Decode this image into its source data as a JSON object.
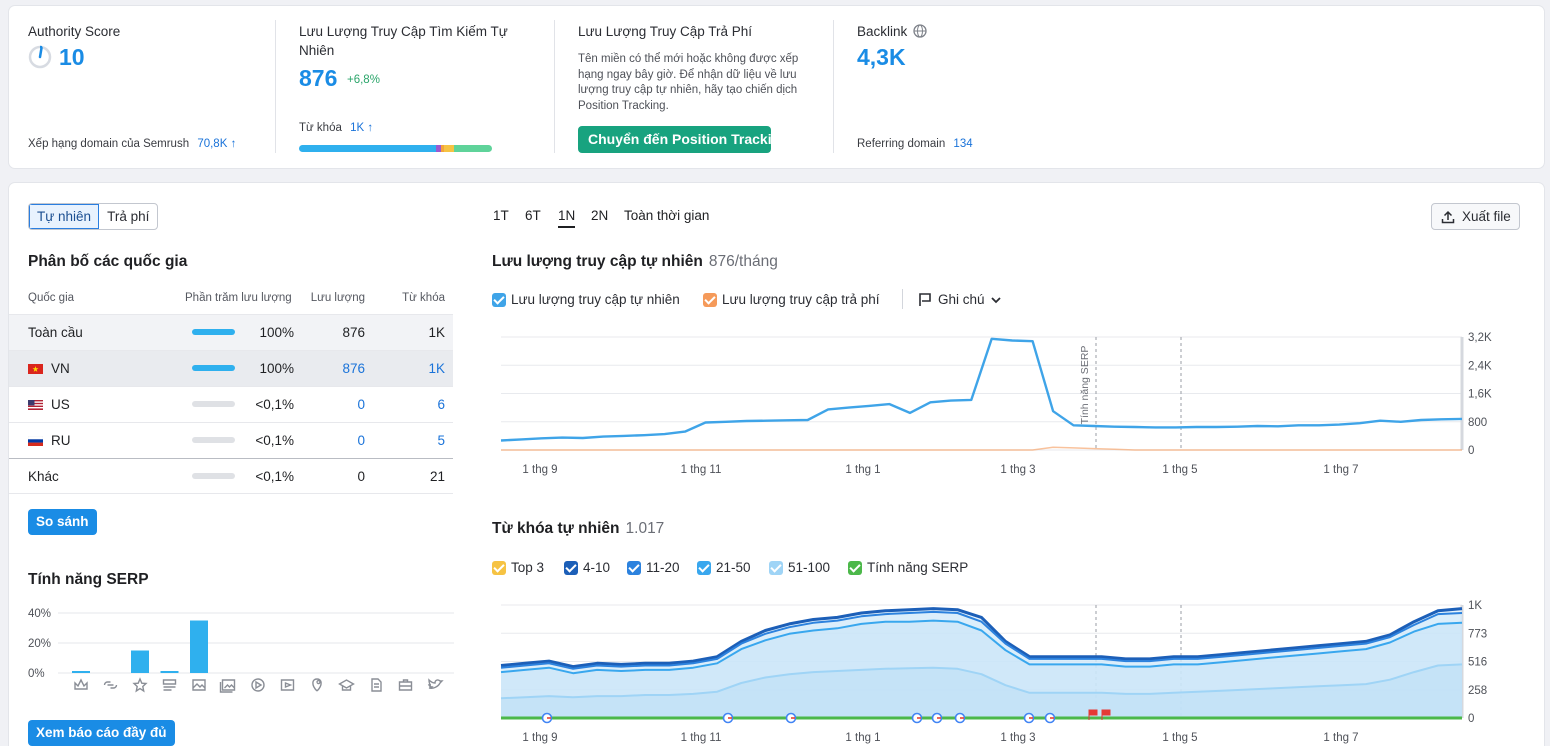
{
  "summary": {
    "authority": {
      "label": "Authority Score",
      "value": "10",
      "sub_label": "Xếp hạng domain của Semrush",
      "sub_value": "70,8K",
      "sub_arrow": "↑"
    },
    "organic": {
      "label": "Lưu Lượng Truy Cập Tìm Kiếm Tự Nhiên",
      "value": "876",
      "delta": "+6,8%",
      "kw_label": "Từ khóa",
      "kw_value": "1K",
      "kw_arrow": "↑"
    },
    "paid": {
      "label": "Lưu Lượng Truy Cập Trả Phí",
      "note": "Tên miền có thể mới hoặc không được xếp hạng ngay bây giờ. Để nhận dữ liệu về lưu lượng truy cập tự nhiên, hãy tạo chiến dịch Position Tracking.",
      "button": "Chuyển đến Position Tracking"
    },
    "backlink": {
      "label": "Backlink",
      "value": "4,3K",
      "sub_label": "Referring domain",
      "sub_value": "134"
    }
  },
  "tabs": {
    "organic": "Tự nhiên",
    "paid": "Trả phí"
  },
  "countries": {
    "title": "Phân bố các quốc gia",
    "headers": {
      "country": "Quốc gia",
      "share": "Phần trăm lưu lượng",
      "traffic": "Lưu lượng",
      "keywords": "Từ khóa"
    },
    "rows": [
      {
        "name": "Toàn cầu",
        "share": "100%",
        "traffic": "876",
        "keywords": "1K"
      },
      {
        "name": "VN",
        "share": "100%",
        "traffic": "876",
        "keywords": "1K"
      },
      {
        "name": "US",
        "share": "<0,1%",
        "traffic": "0",
        "keywords": "6"
      },
      {
        "name": "RU",
        "share": "<0,1%",
        "traffic": "0",
        "keywords": "5"
      },
      {
        "name": "Khác",
        "share": "<0,1%",
        "traffic": "0",
        "keywords": "21"
      }
    ],
    "compare_button": "So sánh"
  },
  "serp": {
    "title": "Tính năng SERP",
    "full_report_button": "Xem báo cáo đầy đủ",
    "icons": [
      "crown-icon",
      "link-icon",
      "star-icon",
      "list-icon",
      "image-icon",
      "image-gallery-icon",
      "video-icon",
      "play-icon",
      "location-pin-icon",
      "graduation-cap-icon",
      "document-icon",
      "briefcase-icon",
      "twitter-icon"
    ]
  },
  "periods": [
    "1T",
    "6T",
    "1N",
    "2N",
    "Toàn thời gian"
  ],
  "active_period": "1N",
  "export_button": "Xuất file",
  "traffic_section": {
    "title": "Lưu lượng truy cập tự nhiên",
    "value": "876/tháng",
    "legend_organic": "Lưu lượng truy cập tự nhiên",
    "legend_paid": "Lưu lượng truy cập trả phí",
    "notes": "Ghi chú"
  },
  "keywords_section": {
    "title": "Từ khóa tự nhiên",
    "value": "1.017",
    "legend": [
      "Top 3",
      "4-10",
      "11-20",
      "21-50",
      "51-100",
      "Tính năng SERP"
    ]
  },
  "colors": {
    "organic": "#3fa4e8",
    "paid": "#f59a5a",
    "top3": "#f6c343",
    "k4_10": "#1c5fb8",
    "k11_20": "#2c82de",
    "k21_50": "#39a7ee",
    "k51_100": "#9fd4f6",
    "serp": "#4cb84a",
    "accent": "#1a8ce5"
  },
  "chart_data": [
    {
      "type": "bar",
      "title": "Tính năng SERP",
      "categories": [
        "Featured snippet",
        "Sitelinks",
        "Reviews",
        "Table",
        "Image",
        "Image pack",
        "Video",
        "Featured video",
        "Local pack",
        "Knowledge",
        "Article",
        "Jobs",
        "Twitter"
      ],
      "values": [
        1,
        0,
        15,
        1,
        35,
        0,
        0,
        0,
        0,
        0,
        0,
        0,
        0
      ],
      "y_ticks": [
        "0%",
        "20%",
        "40%"
      ],
      "ylim": [
        0,
        40
      ]
    },
    {
      "type": "line",
      "title": "Lưu lượng truy cập tự nhiên",
      "x_ticks": [
        "1 thg 9",
        "1 thg 11",
        "1 thg 1",
        "1 thg 3",
        "1 thg 5",
        "1 thg 7"
      ],
      "y_ticks": [
        "0",
        "800",
        "1,6K",
        "2,4K",
        "3,2K"
      ],
      "ylim": [
        0,
        3200
      ],
      "annotation": "Tính năng SERP",
      "series": [
        {
          "name": "Lưu lượng truy cập tự nhiên",
          "values": [
            270,
            300,
            330,
            350,
            340,
            380,
            400,
            420,
            450,
            520,
            780,
            800,
            820,
            830,
            840,
            850,
            1150,
            1200,
            1250,
            1300,
            1050,
            1350,
            1400,
            1420,
            3150,
            3100,
            3080,
            1100,
            700,
            680,
            660,
            650,
            640,
            640,
            650,
            650,
            660,
            680,
            670,
            700,
            700,
            720,
            760,
            830,
            800,
            850,
            870,
            880
          ]
        },
        {
          "name": "Lưu lượng truy cập trả phí",
          "values": [
            0,
            0,
            0,
            0,
            0,
            0,
            0,
            0,
            0,
            0,
            0,
            0,
            0,
            0,
            0,
            0,
            0,
            0,
            0,
            0,
            0,
            0,
            0,
            0,
            0,
            0,
            0,
            80,
            60,
            40,
            20,
            0,
            0,
            0,
            0,
            0,
            0,
            0,
            0,
            0,
            0,
            0,
            0,
            0,
            0,
            0,
            0,
            0
          ]
        }
      ]
    },
    {
      "type": "area",
      "title": "Từ khóa tự nhiên",
      "x_ticks": [
        "1 thg 9",
        "1 thg 11",
        "1 thg 1",
        "1 thg 3",
        "1 thg 5",
        "1 thg 7"
      ],
      "y_ticks": [
        "0",
        "258",
        "516",
        "773",
        "1K"
      ],
      "ylim": [
        0,
        1033
      ],
      "series": [
        {
          "name": "4-10",
          "values": [
            480,
            500,
            520,
            470,
            500,
            490,
            500,
            500,
            520,
            560,
            700,
            800,
            860,
            900,
            920,
            960,
            980,
            990,
            1000,
            990,
            920,
            700,
            560,
            560,
            560,
            560,
            540,
            540,
            560,
            560,
            580,
            600,
            620,
            640,
            660,
            680,
            700,
            760,
            880,
            980,
            1000
          ]
        },
        {
          "name": "11-20",
          "values": [
            460,
            480,
            500,
            450,
            480,
            470,
            480,
            480,
            500,
            540,
            680,
            770,
            830,
            870,
            890,
            930,
            950,
            960,
            970,
            960,
            880,
            680,
            540,
            540,
            540,
            540,
            520,
            520,
            540,
            540,
            560,
            580,
            600,
            620,
            640,
            660,
            680,
            740,
            850,
            950,
            960
          ]
        },
        {
          "name": "21-50",
          "values": [
            420,
            440,
            460,
            410,
            440,
            430,
            440,
            440,
            460,
            500,
            630,
            710,
            770,
            800,
            820,
            860,
            880,
            880,
            890,
            880,
            800,
            620,
            490,
            490,
            490,
            490,
            470,
            470,
            490,
            490,
            510,
            530,
            550,
            570,
            590,
            610,
            630,
            690,
            790,
            860,
            870
          ]
        },
        {
          "name": "51-100",
          "values": [
            180,
            190,
            200,
            190,
            200,
            200,
            210,
            210,
            220,
            240,
            320,
            370,
            400,
            420,
            430,
            440,
            450,
            455,
            460,
            450,
            400,
            300,
            230,
            230,
            230,
            230,
            220,
            220,
            230,
            240,
            250,
            260,
            270,
            280,
            290,
            300,
            310,
            350,
            420,
            480,
            490
          ]
        }
      ]
    }
  ]
}
